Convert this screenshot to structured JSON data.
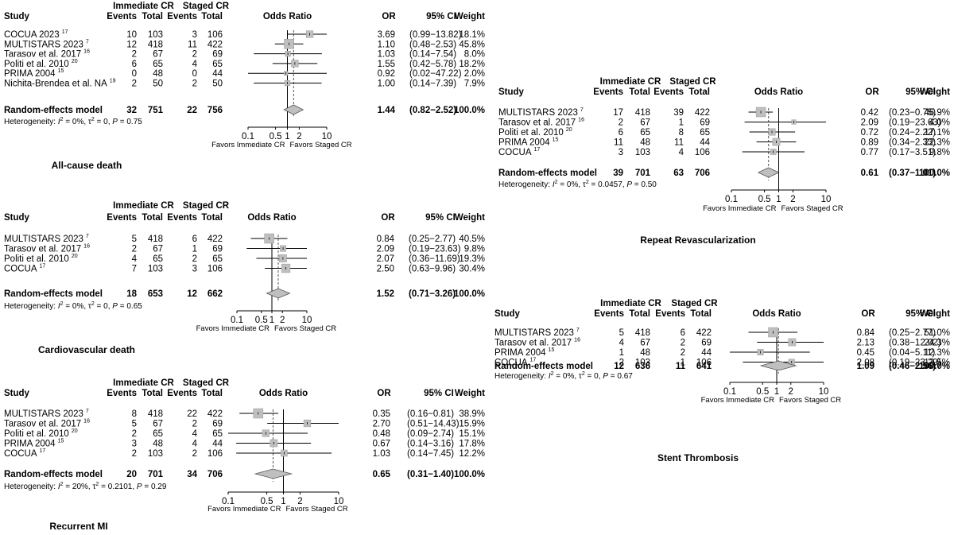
{
  "headers": {
    "study": "Study",
    "group1": "Immediate CR",
    "group2": "Staged CR",
    "events": "Events",
    "total": "Total",
    "odds_ratio": "Odds Ratio",
    "or": "OR",
    "ci": "95% CI",
    "weight": "Weight"
  },
  "favors_left": "Favors Immediate CR",
  "favors_right": "Favors Staged CR",
  "colors": {
    "box": "#bfbfbf",
    "diamond": "#bfbfbf",
    "line": "#000000",
    "dash": "#555555"
  },
  "chart_data": [
    {
      "type": "forest",
      "title": "All-cause death",
      "scale": "log",
      "xlim": [
        0.1,
        10
      ],
      "ticks": [
        "0.1",
        "0.5",
        "1",
        "2",
        "10"
      ],
      "tick_values": [
        0.1,
        0.5,
        1,
        2,
        10
      ],
      "studies": [
        {
          "name": "COCUA 2023",
          "ref": "17",
          "e1": "10",
          "n1": "103",
          "e2": "3",
          "n2": "106",
          "or": 3.69,
          "lo": 0.99,
          "hi": 13.82,
          "or_text": "3.69",
          "ci_text": "(0.99−13.82)",
          "weight": "18.1%",
          "w": 18.1
        },
        {
          "name": "MULTISTARS 2023",
          "ref": "7",
          "e1": "12",
          "n1": "418",
          "e2": "11",
          "n2": "422",
          "or": 1.1,
          "lo": 0.48,
          "hi": 2.53,
          "or_text": "1.10",
          "ci_text": "(0.48−2.53)",
          "weight": "45.8%",
          "w": 45.8
        },
        {
          "name": "Tarasov et al. 2017",
          "ref": "16",
          "e1": "2",
          "n1": "67",
          "e2": "2",
          "n2": "69",
          "or": 1.03,
          "lo": 0.14,
          "hi": 7.54,
          "or_text": "1.03",
          "ci_text": "(0.14−7.54)",
          "weight": "8.0%",
          "w": 8.0
        },
        {
          "name": "Politi et al. 2010",
          "ref": "20",
          "e1": "6",
          "n1": "65",
          "e2": "4",
          "n2": "65",
          "or": 1.55,
          "lo": 0.42,
          "hi": 5.78,
          "or_text": "1.55",
          "ci_text": "(0.42−5.78)",
          "weight": "18.2%",
          "w": 18.2
        },
        {
          "name": "PRIMA 2004",
          "ref": "15",
          "e1": "0",
          "n1": "48",
          "e2": "0",
          "n2": "44",
          "or": 0.92,
          "lo": 0.02,
          "hi": 47.22,
          "or_text": "0.92",
          "ci_text": "(0.02−47.22)",
          "weight": "2.0%",
          "w": 2.0
        },
        {
          "name": "Nichita-Brendea et al. NA",
          "ref": "19",
          "e1": "2",
          "n1": "50",
          "e2": "2",
          "n2": "50",
          "or": 1.0,
          "lo": 0.14,
          "hi": 7.39,
          "or_text": "1.00",
          "ci_text": "(0.14−7.39)",
          "weight": "7.9%",
          "w": 7.9
        }
      ],
      "summary": {
        "label": "Random-effects model",
        "e1": "32",
        "n1": "751",
        "e2": "22",
        "n2": "756",
        "or": 1.44,
        "lo": 0.82,
        "hi": 2.52,
        "or_text": "1.44",
        "ci_text": "(0.82−2.52)",
        "weight": "100.0%"
      },
      "het": {
        "i2": "0%",
        "tau2": "0",
        "p": "0.75"
      }
    },
    {
      "type": "forest",
      "title": "Cardiovascular death",
      "scale": "log",
      "xlim": [
        0.1,
        10
      ],
      "ticks": [
        "0.1",
        "0.5",
        "1",
        "2",
        "10"
      ],
      "tick_values": [
        0.1,
        0.5,
        1,
        2,
        10
      ],
      "studies": [
        {
          "name": "MULTISTARS 2023",
          "ref": "7",
          "e1": "5",
          "n1": "418",
          "e2": "6",
          "n2": "422",
          "or": 0.84,
          "lo": 0.25,
          "hi": 2.77,
          "or_text": "0.84",
          "ci_text": "(0.25−2.77)",
          "weight": "40.5%",
          "w": 40.5
        },
        {
          "name": "Tarasov et al. 2017",
          "ref": "16",
          "e1": "2",
          "n1": "67",
          "e2": "1",
          "n2": "69",
          "or": 2.09,
          "lo": 0.19,
          "hi": 23.63,
          "or_text": "2.09",
          "ci_text": "(0.19−23.63)",
          "weight": "9.8%",
          "w": 9.8
        },
        {
          "name": "Politi et al. 2010",
          "ref": "20",
          "e1": "4",
          "n1": "65",
          "e2": "2",
          "n2": "65",
          "or": 2.07,
          "lo": 0.36,
          "hi": 11.69,
          "or_text": "2.07",
          "ci_text": "(0.36−11.69)",
          "weight": "19.3%",
          "w": 19.3
        },
        {
          "name": "COCUA",
          "ref": "17",
          "e1": "7",
          "n1": "103",
          "e2": "3",
          "n2": "106",
          "or": 2.5,
          "lo": 0.63,
          "hi": 9.96,
          "or_text": "2.50",
          "ci_text": "(0.63−9.96)",
          "weight": "30.4%",
          "w": 30.4
        }
      ],
      "summary": {
        "label": "Random-effects model",
        "e1": "18",
        "n1": "653",
        "e2": "12",
        "n2": "662",
        "or": 1.52,
        "lo": 0.71,
        "hi": 3.26,
        "or_text": "1.52",
        "ci_text": "(0.71−3.26)",
        "weight": "100.0%"
      },
      "het": {
        "i2": "0%",
        "tau2": "0",
        "p": "0.65"
      }
    },
    {
      "type": "forest",
      "title": "Recurrent MI",
      "scale": "log",
      "xlim": [
        0.1,
        10
      ],
      "ticks": [
        "0.1",
        "0.5",
        "1",
        "2",
        "10"
      ],
      "tick_values": [
        0.1,
        0.5,
        1,
        2,
        10
      ],
      "studies": [
        {
          "name": "MULTISTARS 2023",
          "ref": "7",
          "e1": "8",
          "n1": "418",
          "e2": "22",
          "n2": "422",
          "or": 0.35,
          "lo": 0.16,
          "hi": 0.81,
          "or_text": "0.35",
          "ci_text": "(0.16−0.81)",
          "weight": "38.9%",
          "w": 38.9
        },
        {
          "name": "Tarasov et al. 2017",
          "ref": "16",
          "e1": "5",
          "n1": "67",
          "e2": "2",
          "n2": "69",
          "or": 2.7,
          "lo": 0.51,
          "hi": 14.43,
          "or_text": "2.70",
          "ci_text": "(0.51−14.43)",
          "weight": "15.9%",
          "w": 15.9
        },
        {
          "name": "Politi et al. 2010",
          "ref": "20",
          "e1": "2",
          "n1": "65",
          "e2": "4",
          "n2": "65",
          "or": 0.48,
          "lo": 0.09,
          "hi": 2.74,
          "or_text": "0.48",
          "ci_text": "(0.09−2.74)",
          "weight": "15.1%",
          "w": 15.1
        },
        {
          "name": "PRIMA 2004",
          "ref": "15",
          "e1": "3",
          "n1": "48",
          "e2": "4",
          "n2": "44",
          "or": 0.67,
          "lo": 0.14,
          "hi": 3.16,
          "or_text": "0.67",
          "ci_text": "(0.14−3.16)",
          "weight": "17.8%",
          "w": 17.8
        },
        {
          "name": "COCUA",
          "ref": "17",
          "e1": "2",
          "n1": "103",
          "e2": "2",
          "n2": "106",
          "or": 1.03,
          "lo": 0.14,
          "hi": 7.45,
          "or_text": "1.03",
          "ci_text": "(0.14−7.45)",
          "weight": "12.2%",
          "w": 12.2
        }
      ],
      "summary": {
        "label": "Random-effects model",
        "e1": "20",
        "n1": "701",
        "e2": "34",
        "n2": "706",
        "or": 0.65,
        "lo": 0.31,
        "hi": 1.4,
        "or_text": "0.65",
        "ci_text": "(0.31−1.40)",
        "weight": "100.0%"
      },
      "het": {
        "i2": "20%",
        "tau2": "0.2101",
        "p": "0.29"
      }
    },
    {
      "type": "forest",
      "title": "Repeat Revascularization",
      "scale": "log",
      "xlim": [
        0.1,
        10
      ],
      "ticks": [
        "0.1",
        "0.5",
        "1",
        "2",
        "10"
      ],
      "tick_values": [
        0.1,
        0.5,
        1,
        2,
        10
      ],
      "studies": [
        {
          "name": "MULTISTARS 2023",
          "ref": "7",
          "e1": "17",
          "n1": "418",
          "e2": "39",
          "n2": "422",
          "or": 0.42,
          "lo": 0.23,
          "hi": 0.75,
          "or_text": "0.42",
          "ci_text": "(0.23−0.75)",
          "weight": "46.9%",
          "w": 46.9
        },
        {
          "name": "Tarasov et al. 2017",
          "ref": "16",
          "e1": "2",
          "n1": "67",
          "e2": "1",
          "n2": "69",
          "or": 2.09,
          "lo": 0.19,
          "hi": 23.63,
          "or_text": "2.09",
          "ci_text": "(0.19−23.63)",
          "weight": "4.0%",
          "w": 4.0
        },
        {
          "name": "Politi et al. 2010",
          "ref": "20",
          "e1": "6",
          "n1": "65",
          "e2": "8",
          "n2": "65",
          "or": 0.72,
          "lo": 0.24,
          "hi": 2.22,
          "or_text": "0.72",
          "ci_text": "(0.24−2.22)",
          "weight": "17.1%",
          "w": 17.1
        },
        {
          "name": "PRIMA 2004",
          "ref": "15",
          "e1": "11",
          "n1": "48",
          "e2": "11",
          "n2": "44",
          "or": 0.89,
          "lo": 0.34,
          "hi": 2.33,
          "or_text": "0.89",
          "ci_text": "(0.34−2.33)",
          "weight": "22.3%",
          "w": 22.3
        },
        {
          "name": "COCUA",
          "ref": "17",
          "e1": "3",
          "n1": "103",
          "e2": "4",
          "n2": "106",
          "or": 0.77,
          "lo": 0.17,
          "hi": 3.51,
          "or_text": "0.77",
          "ci_text": "(0.17−3.51)",
          "weight": "9.8%",
          "w": 9.8
        }
      ],
      "summary": {
        "label": "Random-effects model",
        "e1": "39",
        "n1": "701",
        "e2": "63",
        "n2": "706",
        "or": 0.61,
        "lo": 0.37,
        "hi": 1.01,
        "or_text": "0.61",
        "ci_text": "(0.37−1.01)",
        "weight": "100.0%"
      },
      "het": {
        "i2": "0%",
        "tau2": "0.0457",
        "p": "0.50"
      }
    },
    {
      "type": "forest",
      "title": "Stent Thrombosis",
      "scale": "log",
      "xlim": [
        0.1,
        10
      ],
      "ticks": [
        "0.1",
        "0.5",
        "1",
        "2",
        "10"
      ],
      "tick_values": [
        0.1,
        0.5,
        1,
        2,
        10
      ],
      "studies": [
        {
          "name": "MULTISTARS 2023",
          "ref": "7",
          "e1": "5",
          "n1": "418",
          "e2": "6",
          "n2": "422",
          "or": 0.84,
          "lo": 0.25,
          "hi": 2.77,
          "or_text": "0.84",
          "ci_text": "(0.25−2.77)",
          "weight": "51.0%",
          "w": 51.0
        },
        {
          "name": "Tarasov et al. 2017",
          "ref": "16",
          "e1": "4",
          "n1": "67",
          "e2": "2",
          "n2": "69",
          "or": 2.13,
          "lo": 0.38,
          "hi": 12.02,
          "or_text": "2.13",
          "ci_text": "(0.38−12.02)",
          "weight": "24.3%",
          "w": 24.3
        },
        {
          "name": "PRIMA 2004",
          "ref": "15",
          "e1": "1",
          "n1": "48",
          "e2": "2",
          "n2": "44",
          "or": 0.45,
          "lo": 0.04,
          "hi": 5.11,
          "or_text": "0.45",
          "ci_text": "(0.04−5.11)",
          "weight": "12.3%",
          "w": 12.3
        },
        {
          "name": "COCUA",
          "ref": "17",
          "e1": "2",
          "n1": "103",
          "e2": "1",
          "n2": "106",
          "or": 2.08,
          "lo": 0.19,
          "hi": 23.29,
          "or_text": "2.08",
          "ci_text": "(0.19−23.29)",
          "weight": "12.5%",
          "w": 12.5
        }
      ],
      "summary": {
        "label": "Random-effects model",
        "e1": "12",
        "n1": "636",
        "e2": "11",
        "n2": "641",
        "or": 1.09,
        "lo": 0.46,
        "hi": 2.56,
        "or_text": "1.09",
        "ci_text": "(0.46−2.56)",
        "weight": "100.0%"
      },
      "het": {
        "i2": "0%",
        "tau2": "0",
        "p": "0.67"
      }
    }
  ]
}
